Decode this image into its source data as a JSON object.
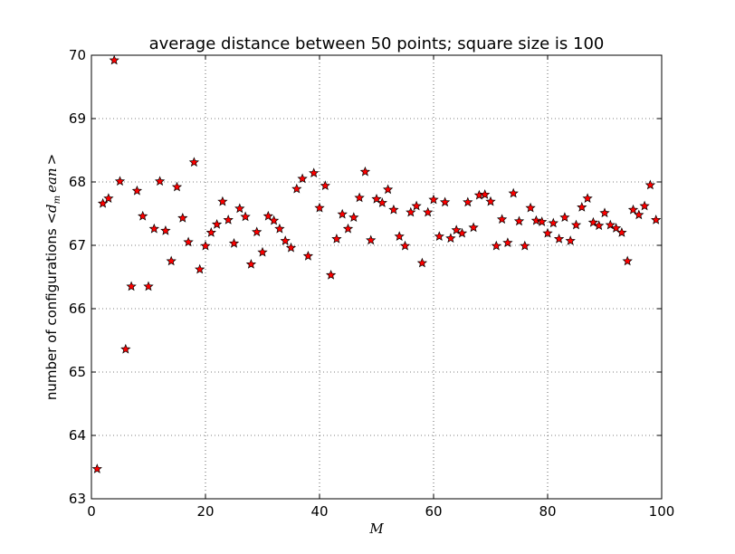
{
  "chart_data": {
    "type": "scatter",
    "title": "average distance between 50 points; square size is 100",
    "xlabel": "M",
    "ylabel": {
      "prefix": "number of configurations <",
      "math_base": "d",
      "math_sub": "m",
      "math_rest": "ean",
      "suffix": ">"
    },
    "xlim": [
      0,
      100
    ],
    "ylim": [
      63,
      70
    ],
    "xticks": [
      0,
      20,
      40,
      60,
      80,
      100
    ],
    "yticks": [
      63,
      64,
      65,
      66,
      67,
      68,
      69,
      70
    ],
    "grid": true,
    "grid_style": "dotted",
    "marker": "star",
    "marker_color": "#ff0000",
    "marker_edge": "#000000",
    "series": [
      {
        "x": [
          1,
          2,
          3,
          4,
          5,
          6,
          7,
          8,
          9,
          10,
          11,
          12,
          13,
          14,
          15,
          16,
          17,
          18,
          19,
          20,
          21,
          22,
          23,
          24,
          25,
          26,
          27,
          28,
          29,
          30,
          31,
          32,
          33,
          34,
          35,
          36,
          37,
          38,
          39,
          40,
          41,
          42,
          43,
          44,
          45,
          46,
          47,
          48,
          49,
          50,
          51,
          52,
          53,
          54,
          55,
          56,
          57,
          58,
          59,
          60,
          61,
          62,
          63,
          64,
          65,
          66,
          67,
          68,
          69,
          70,
          71,
          72,
          73,
          74,
          75,
          76,
          77,
          78,
          79,
          80,
          81,
          82,
          83,
          84,
          85,
          86,
          87,
          88,
          89,
          90,
          91,
          92,
          93,
          94,
          95,
          96,
          97,
          98,
          99
        ],
        "y": [
          63.47,
          67.66,
          67.74,
          69.92,
          68.01,
          65.36,
          66.35,
          67.86,
          67.46,
          66.35,
          67.26,
          68.01,
          67.23,
          66.75,
          67.92,
          67.43,
          67.05,
          68.31,
          66.62,
          66.99,
          67.2,
          67.33,
          67.69,
          67.4,
          67.03,
          67.58,
          67.45,
          66.7,
          67.21,
          66.89,
          67.46,
          67.39,
          67.26,
          67.07,
          66.96,
          67.89,
          68.05,
          66.83,
          68.14,
          67.59,
          67.94,
          66.53,
          67.1,
          67.49,
          67.26,
          67.44,
          67.75,
          68.16,
          67.08,
          67.73,
          67.67,
          67.88,
          67.56,
          67.14,
          66.99,
          67.52,
          67.62,
          66.72,
          67.52,
          67.72,
          67.14,
          67.68,
          67.11,
          67.24,
          67.19,
          67.68,
          67.28,
          67.79,
          67.8,
          67.69,
          66.99,
          67.41,
          67.04,
          67.82,
          67.38,
          66.99,
          67.59,
          67.39,
          67.37,
          67.19,
          67.35,
          67.1,
          67.44,
          67.07,
          67.32,
          67.6,
          67.74,
          67.36,
          67.31,
          67.51,
          67.32,
          67.27,
          67.2,
          66.75,
          67.56,
          67.48,
          67.62,
          67.95,
          67.4
        ]
      }
    ]
  }
}
